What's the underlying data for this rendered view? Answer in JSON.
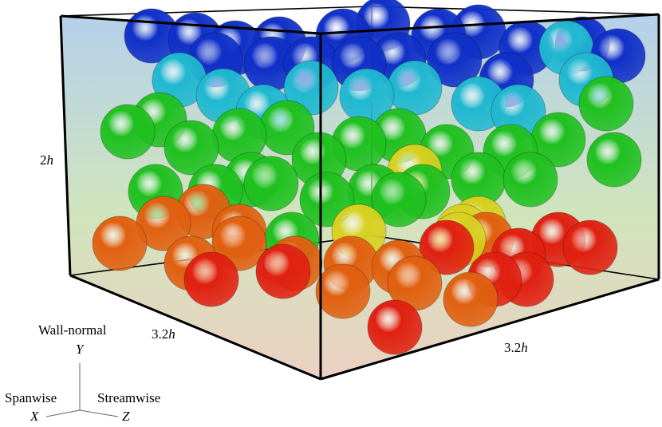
{
  "dimension_labels": {
    "height": {
      "value": "2",
      "var": "h"
    },
    "spanwise": {
      "value": "3.2",
      "var": "h"
    },
    "streamwise": {
      "value": "3.2",
      "var": "h"
    }
  },
  "axes": {
    "y": {
      "name": "Wall-normal",
      "symbol": "Y"
    },
    "x": {
      "name": "Spanwise",
      "symbol": "X"
    },
    "z": {
      "name": "Streamwise",
      "symbol": "Z"
    }
  },
  "colors": {
    "box_edge": "#000000",
    "gradient_top": "#a8c8e8",
    "gradient_mid": "#c8e0b0",
    "gradient_bottom": "#e8c8b8",
    "sphere_blue": "#1030c8",
    "sphere_cyan": "#20b8d0",
    "sphere_green": "#20c020",
    "sphere_yellow": "#d8d020",
    "sphere_orange": "#e06010",
    "sphere_red": "#e02010"
  }
}
